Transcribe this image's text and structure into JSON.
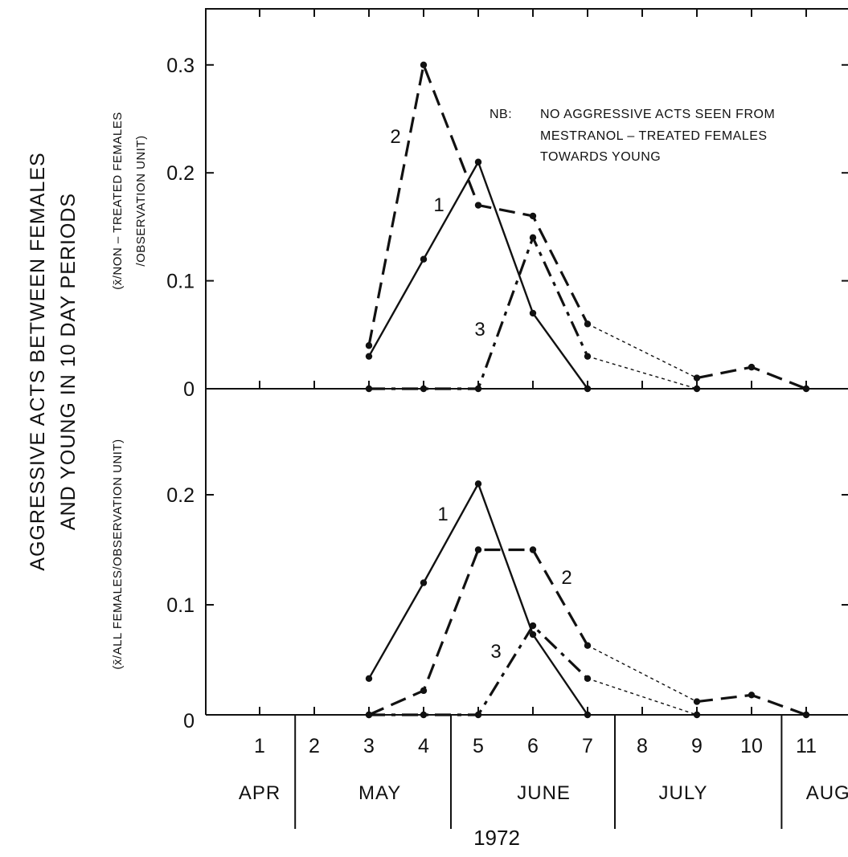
{
  "chart_data": [
    {
      "type": "line",
      "panel": "top",
      "ylabel": "(x̄/NON – TREATED FEMALES /OBSERVATION UNIT)",
      "ylim": [
        0,
        0.35
      ],
      "y_ticks": [
        "0",
        "0.1",
        "0.2",
        "0.3"
      ],
      "y_tick_values": [
        0,
        0.1,
        0.2,
        0.3
      ],
      "annotation": {
        "prefix": "NB:",
        "lines": [
          "NO AGGRESSIVE ACTS SEEN FROM",
          "MESTRANOL – TREATED FEMALES",
          "TOWARDS YOUNG"
        ]
      },
      "series": [
        {
          "name": "1",
          "style": "solid",
          "x": [
            3,
            4,
            5,
            6,
            7
          ],
          "values": [
            0.03,
            0.12,
            0.21,
            0.07,
            0.0
          ]
        },
        {
          "name": "2",
          "style": "dashed",
          "x": [
            3,
            4,
            5,
            6,
            7,
            9,
            10,
            11
          ],
          "values": [
            0.04,
            0.3,
            0.17,
            0.16,
            0.06,
            0.01,
            0.02,
            0.0
          ],
          "dotted_from_index": 4
        },
        {
          "name": "3",
          "style": "dash-dot",
          "x": [
            3,
            4,
            5,
            6,
            7,
            9
          ],
          "values": [
            0.0,
            0.0,
            0.0,
            0.14,
            0.03,
            0.0
          ],
          "dotted_from_index": 4
        }
      ]
    },
    {
      "type": "line",
      "panel": "bottom",
      "ylabel": "(x̄/ALL FEMALES/OBSERVATION UNIT)",
      "ylim": [
        0,
        0.3
      ],
      "y_ticks": [
        "0",
        "0.1",
        "0.2"
      ],
      "y_tick_values": [
        0,
        0.1,
        0.2
      ],
      "series": [
        {
          "name": "1",
          "style": "solid",
          "x": [
            3,
            4,
            5,
            6,
            7
          ],
          "values": [
            0.033,
            0.12,
            0.21,
            0.073,
            0.0
          ]
        },
        {
          "name": "2",
          "style": "dashed",
          "x": [
            3,
            4,
            5,
            6,
            7,
            9,
            10,
            11
          ],
          "values": [
            0.0,
            0.022,
            0.15,
            0.15,
            0.063,
            0.012,
            0.018,
            0.0
          ],
          "dotted_from_index": 4
        },
        {
          "name": "3",
          "style": "dash-dot",
          "x": [
            3,
            4,
            5,
            6,
            7,
            9
          ],
          "values": [
            0.0,
            0.0,
            0.0,
            0.081,
            0.033,
            0.0
          ],
          "dotted_from_index": 4
        }
      ]
    }
  ],
  "shared": {
    "ylabel_main": [
      "AGGRESSIVE ACTS BETWEEN FEMALES",
      "AND YOUNG IN  10 DAY PERIODS"
    ],
    "x_ticks": [
      1,
      2,
      3,
      4,
      5,
      6,
      7,
      8,
      9,
      10,
      11
    ],
    "x_tick_labels": [
      "1",
      "2",
      "3",
      "4",
      "5",
      "6",
      "7",
      "8",
      "9",
      "10",
      "11"
    ],
    "months": [
      {
        "label": "APR",
        "center": 1
      },
      {
        "label": "MAY",
        "center": 3.2
      },
      {
        "label": "JUNE",
        "center": 6.2
      },
      {
        "label": "JULY",
        "center": 8.75
      },
      {
        "label": "AUG",
        "center": 11.4
      }
    ],
    "month_boundaries": [
      1.65,
      4.5,
      7.5,
      10.55
    ],
    "year": "1972"
  }
}
